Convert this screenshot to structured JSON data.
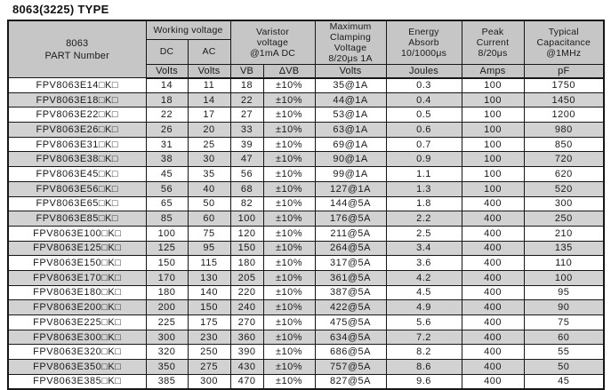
{
  "page": {
    "title": "8063(3225) TYPE"
  },
  "colors": {
    "header_bg": "#c6c6c6",
    "stripe_bg": "#d2d2d2",
    "border": "#161616",
    "text": "#1a1a1a"
  },
  "table": {
    "headers": {
      "part_number": "8063\nPART Number",
      "working_voltage": "Working voltage",
      "dc": "DC",
      "ac": "AC",
      "varistor_voltage": "Varistor\nvoltage\n@1mA DC",
      "max_clamping_voltage": "Maximum\nClamping\nVoltage\n8/20μs 1A",
      "energy_absorb": "Energy\nAbsorb\n10/1000μs",
      "peak_current": "Peak\nCurrent\n8/20μs",
      "typical_capacitance": "Typical\nCapacitance\n@1MHz",
      "units": {
        "dc": "Volts",
        "ac": "Volts",
        "vb": "VB",
        "dvb": "ΔVB",
        "clamping": "Volts",
        "energy": "Joules",
        "peak": "Amps",
        "capacitance": "pF"
      }
    },
    "columns": [
      "part_number",
      "dc_volts",
      "ac_volts",
      "vb",
      "delta_vb",
      "clamping_volts",
      "energy_joules",
      "peak_amps",
      "capacitance_pf"
    ],
    "rows": [
      [
        "FPV8063E14□K□",
        "14",
        "11",
        "18",
        "±10%",
        "35@1A",
        "0.3",
        "100",
        "1750"
      ],
      [
        "FPV8063E18□K□",
        "18",
        "14",
        "22",
        "±10%",
        "44@1A",
        "0.4",
        "100",
        "1450"
      ],
      [
        "FPV8063E22□K□",
        "22",
        "17",
        "27",
        "±10%",
        "53@1A",
        "0.5",
        "100",
        "1200"
      ],
      [
        "FPV8063E26□K□",
        "26",
        "20",
        "33",
        "±10%",
        "63@1A",
        "0.6",
        "100",
        "980"
      ],
      [
        "FPV8063E31□K□",
        "31",
        "25",
        "39",
        "±10%",
        "69@1A",
        "0.7",
        "100",
        "850"
      ],
      [
        "FPV8063E38□K□",
        "38",
        "30",
        "47",
        "±10%",
        "90@1A",
        "0.9",
        "100",
        "720"
      ],
      [
        "FPV8063E45□K□",
        "45",
        "35",
        "56",
        "±10%",
        "99@1A",
        "1.1",
        "100",
        "620"
      ],
      [
        "FPV8063E56□K□",
        "56",
        "40",
        "68",
        "±10%",
        "127@1A",
        "1.3",
        "100",
        "520"
      ],
      [
        "FPV8063E65□K□",
        "65",
        "50",
        "82",
        "±10%",
        "144@5A",
        "1.8",
        "400",
        "300"
      ],
      [
        "FPV8063E85□K□",
        "85",
        "60",
        "100",
        "±10%",
        "176@5A",
        "2.2",
        "400",
        "250"
      ],
      [
        "FPV8063E100□K□",
        "100",
        "75",
        "120",
        "±10%",
        "211@5A",
        "2.5",
        "400",
        "210"
      ],
      [
        "FPV8063E125□K□",
        "125",
        "95",
        "150",
        "±10%",
        "264@5A",
        "3.4",
        "400",
        "135"
      ],
      [
        "FPV8063E150□K□",
        "150",
        "115",
        "180",
        "±10%",
        "317@5A",
        "3.6",
        "400",
        "110"
      ],
      [
        "FPV8063E170□K□",
        "170",
        "130",
        "205",
        "±10%",
        "361@5A",
        "4.2",
        "400",
        "100"
      ],
      [
        "FPV8063E180□K□",
        "180",
        "140",
        "220",
        "±10%",
        "387@5A",
        "4.5",
        "400",
        "95"
      ],
      [
        "FPV8063E200□K□",
        "200",
        "150",
        "240",
        "±10%",
        "422@5A",
        "4.9",
        "400",
        "90"
      ],
      [
        "FPV8063E225□K□",
        "225",
        "175",
        "270",
        "±10%",
        "475@5A",
        "5.6",
        "400",
        "75"
      ],
      [
        "FPV8063E300□K□",
        "300",
        "230",
        "360",
        "±10%",
        "634@5A",
        "7.2",
        "400",
        "60"
      ],
      [
        "FPV8063E320□K□",
        "320",
        "250",
        "390",
        "±10%",
        "686@5A",
        "8.2",
        "400",
        "55"
      ],
      [
        "FPV8063E350□K□",
        "350",
        "275",
        "430",
        "±10%",
        "757@5A",
        "8.6",
        "400",
        "50"
      ],
      [
        "FPV8063E385□K□",
        "385",
        "300",
        "470",
        "±10%",
        "827@5A",
        "9.6",
        "400",
        "45"
      ]
    ]
  }
}
